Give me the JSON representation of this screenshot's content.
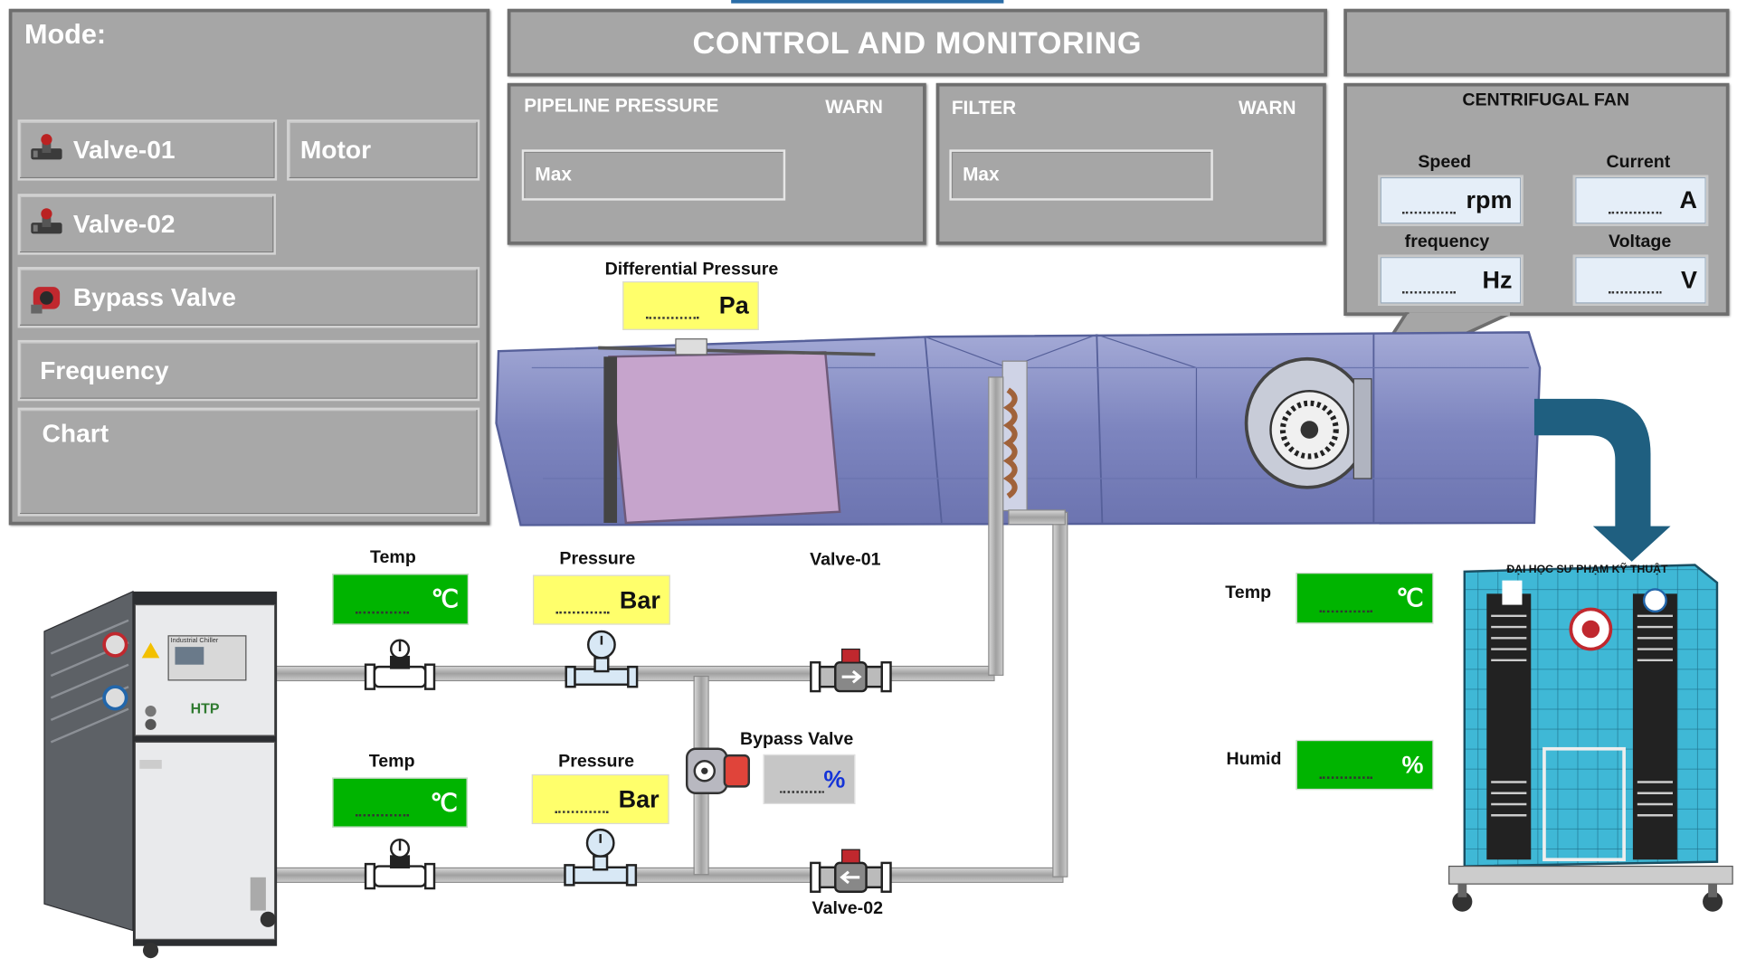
{
  "header": {
    "title": "CONTROL AND MONITORING"
  },
  "mode_panel": {
    "title": "Mode:",
    "valve01": "Valve-01",
    "motor": "Motor",
    "valve02": "Valve-02",
    "bypass": "Bypass Valve",
    "frequency": "Frequency",
    "chart": "Chart"
  },
  "pipeline_pressure": {
    "title": "PIPELINE PRESSURE",
    "warn": "WARN",
    "max_label": "Max"
  },
  "filter": {
    "title": "FILTER",
    "warn": "WARN",
    "max_label": "Max"
  },
  "fan": {
    "title": "CENTRIFUGAL FAN",
    "speed_label": "Speed",
    "speed_unit": "rpm",
    "current_label": "Current",
    "current_unit": "A",
    "frequency_label": "frequency",
    "frequency_unit": "Hz",
    "voltage_label": "Voltage",
    "voltage_unit": "V"
  },
  "diff_pressure": {
    "label": "Differential Pressure",
    "unit": "Pa"
  },
  "top_line": {
    "temp_label": "Temp",
    "temp_unit": "℃",
    "pressure_label": "Pressure",
    "pressure_unit": "Bar",
    "valve_label": "Valve-01"
  },
  "bottom_line": {
    "temp_label": "Temp",
    "temp_unit": "℃",
    "pressure_label": "Pressure",
    "pressure_unit": "Bar",
    "valve_label": "Valve-02"
  },
  "bypass_valve": {
    "label": "Bypass Valve",
    "unit": "%"
  },
  "room": {
    "temp_label": "Temp",
    "temp_unit": "℃",
    "humid_label": "Humid",
    "humid_unit": "%"
  },
  "chiller": {
    "brand": "HTP",
    "panel_text": "Industrial Chiller"
  },
  "cabinet": {
    "banner": "ĐẠI HỌC SƯ PHẠM KỸ THUẬT"
  },
  "colors": {
    "panel": "#a6a6a6",
    "green_display": "#00b400",
    "yellow_display": "#ffff6b",
    "duct": "#8b93c7",
    "arrow": "#1f5f80",
    "cabinet": "#3fb8d6"
  }
}
